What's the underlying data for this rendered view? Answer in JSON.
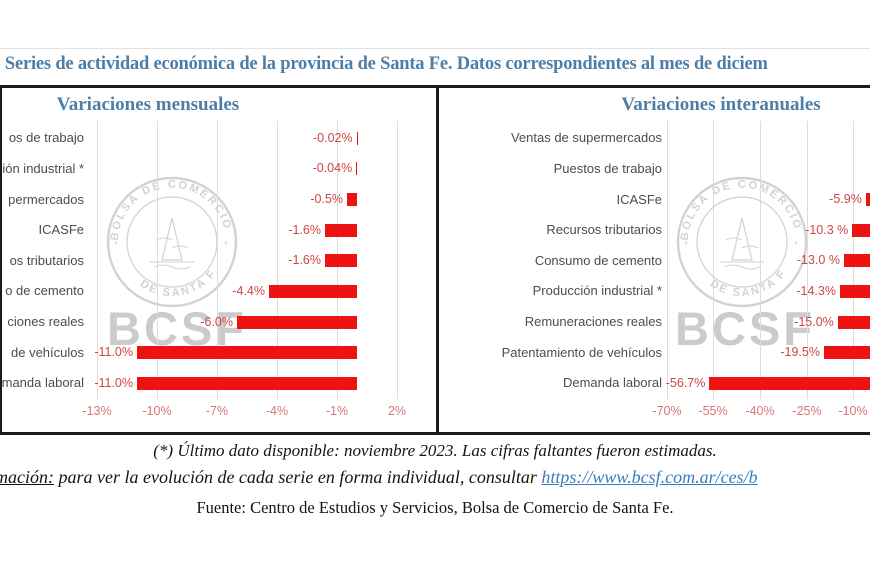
{
  "header": {
    "title_visible": ". Series de actividad económica de la provincia de Santa Fe. Datos correspondientes al mes de diciem"
  },
  "chart_data": [
    {
      "type": "bar",
      "orientation": "horizontal",
      "title": "Variaciones mensuales",
      "categories_visible": [
        "os de trabajo",
        "ión industrial *",
        "permercados",
        "ICASFe",
        "os tributarios",
        "o de cemento",
        "ciones reales",
        "de vehículos",
        "manda laboral"
      ],
      "values": [
        -0.02,
        -0.04,
        -0.5,
        -1.6,
        -1.6,
        -4.4,
        -6.0,
        -11.0,
        -11.0
      ],
      "value_labels": [
        "-0.02%",
        "-0.04%",
        "-0.5%",
        "-1.6%",
        "-1.6%",
        "-4.4%",
        "-6.0%",
        "-11.0%",
        "-11.0%"
      ],
      "x_ticks": [
        "-13%",
        "-10%",
        "-7%",
        "-4%",
        "-1%",
        "2%"
      ],
      "x_tick_values": [
        -13,
        -10,
        -7,
        -4,
        -1,
        2
      ],
      "xlabel": "",
      "ylabel": "",
      "grid": true,
      "legend": false
    },
    {
      "type": "bar",
      "orientation": "horizontal",
      "title": "Variaciones interanuales",
      "categories": [
        "Ventas de supermercados",
        "Puestos de trabajo",
        "ICASFe",
        "Recursos tributarios",
        "Consumo de cemento",
        "Producción industrial *",
        "Remuneraciones reales",
        "Patentamiento de vehículos",
        "Demanda laboral"
      ],
      "values": [
        null,
        null,
        -5.9,
        -10.3,
        -13.0,
        -14.3,
        -15.0,
        -19.5,
        -56.7
      ],
      "value_labels": [
        "",
        "",
        "-5.9%",
        "-10.3 %",
        "-13.0 %",
        "-14.3%",
        "-15.0%",
        "-19.5%",
        "-56.7%"
      ],
      "x_ticks": [
        "-70%",
        "-55%",
        "-40%",
        "-25%",
        "-10%"
      ],
      "x_tick_values": [
        -70,
        -55,
        -40,
        -25,
        -10
      ],
      "xlabel": "",
      "ylabel": "",
      "grid": true,
      "legend": false
    }
  ],
  "watermark": {
    "seal_top": "BOLSA DE COMERCIO",
    "seal_bottom": "DE SANTA FE",
    "big_text": "BCSF"
  },
  "footnotes": {
    "line1": "(*) Último dato disponible: noviembre 2023. Las cifras faltantes fueron estimadas.",
    "line2_prefix_visible": "mación:",
    "line2_body": " para ver la evolución de cada serie en forma individual, consultar ",
    "line2_link_visible": "https://www.bcsf.com.ar/ces/b",
    "line3": "Fuente: Centro de Estudios y Servicios, Bolsa de Comercio de Santa Fe."
  },
  "colors": {
    "accent_blue": "#4d7ea7",
    "bar_red": "#ee1313",
    "value_label_red": "#cf4545",
    "axis_label_red": "#d87676",
    "category_gray": "#4d4d4d",
    "gridline_gray": "#dcdcdc",
    "border_black": "#1b1b1b",
    "link_blue": "#3c7cc0",
    "watermark_gray": "#c4c4c4"
  }
}
